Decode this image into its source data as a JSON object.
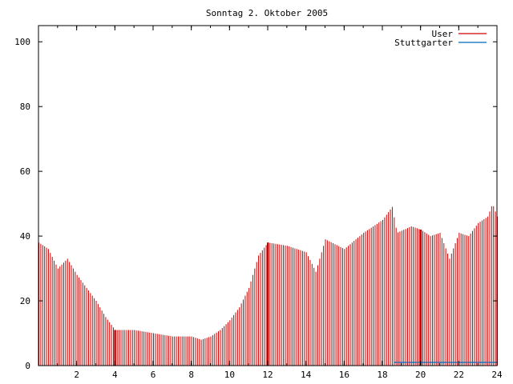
{
  "chart_data": {
    "type": "bar",
    "title": "Sonntag 2. Oktober 2005",
    "xlabel": "",
    "ylabel": "",
    "xlim": [
      0,
      24
    ],
    "ylim": [
      0,
      105
    ],
    "x_ticks": [
      "2",
      "4",
      "6",
      "8",
      "10",
      "12",
      "14",
      "16",
      "18",
      "20",
      "22",
      "24"
    ],
    "y_ticks": [
      "0",
      "20",
      "40",
      "60",
      "80",
      "100"
    ],
    "legend_position": "top-right",
    "grid": false,
    "series": [
      {
        "name": "User",
        "color": "#cc0000",
        "points": [
          [
            0.0,
            38
          ],
          [
            0.5,
            36
          ],
          [
            1.0,
            30
          ],
          [
            1.5,
            33
          ],
          [
            2.0,
            28
          ],
          [
            2.5,
            24
          ],
          [
            3.0,
            20
          ],
          [
            3.5,
            15
          ],
          [
            4.0,
            11
          ],
          [
            5.0,
            11
          ],
          [
            6.0,
            10
          ],
          [
            7.0,
            9
          ],
          [
            8.0,
            9
          ],
          [
            8.5,
            8
          ],
          [
            9.0,
            9
          ],
          [
            9.5,
            11
          ],
          [
            10.0,
            14
          ],
          [
            10.5,
            18
          ],
          [
            11.0,
            24
          ],
          [
            11.5,
            34
          ],
          [
            12.0,
            38
          ],
          [
            13.0,
            37
          ],
          [
            14.0,
            35
          ],
          [
            14.5,
            29
          ],
          [
            15.0,
            39
          ],
          [
            16.0,
            36
          ],
          [
            17.0,
            41
          ],
          [
            17.5,
            43
          ],
          [
            18.0,
            45
          ],
          [
            18.5,
            49
          ],
          [
            18.75,
            41
          ],
          [
            19.5,
            43
          ],
          [
            20.0,
            42
          ],
          [
            20.5,
            40
          ],
          [
            21.0,
            41
          ],
          [
            21.5,
            33
          ],
          [
            22.0,
            41
          ],
          [
            22.5,
            40
          ],
          [
            23.0,
            44
          ],
          [
            23.5,
            46
          ],
          [
            23.75,
            50
          ],
          [
            24.0,
            46
          ]
        ],
        "highlight_x": [
          4.0,
          12.0,
          20.0
        ]
      },
      {
        "name": "Stuttgarter",
        "color": "#0066bb",
        "points": [
          [
            18.6,
            1
          ],
          [
            20.0,
            1
          ],
          [
            24.0,
            1
          ]
        ]
      }
    ]
  }
}
